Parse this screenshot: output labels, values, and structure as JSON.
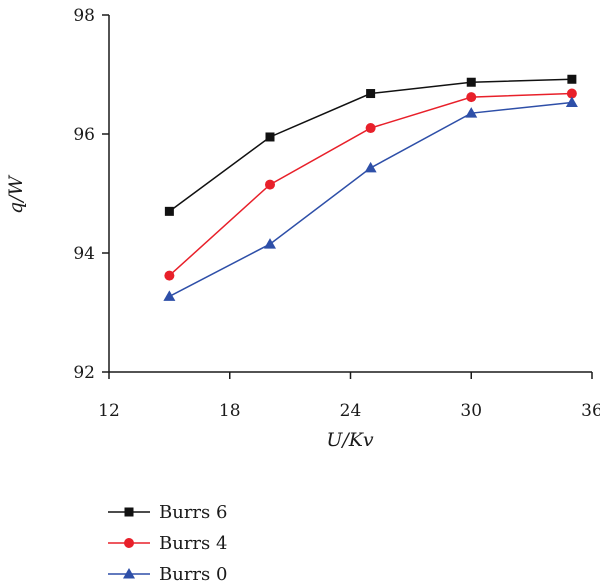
{
  "chart_data": {
    "type": "line",
    "xlabel": "U/Kv",
    "ylabel": "q/W",
    "xlim": [
      12,
      36
    ],
    "ylim": [
      92,
      98
    ],
    "xticks": [
      12,
      18,
      24,
      30,
      36
    ],
    "yticks": [
      92,
      94,
      96,
      98
    ],
    "grid": false,
    "legend_position": "bottom-left, below plot",
    "series": [
      {
        "name": "Burrs 6",
        "color": "#111111",
        "marker": "square",
        "points": [
          [
            15,
            94.7
          ],
          [
            20,
            95.95
          ],
          [
            25,
            96.68
          ],
          [
            30,
            96.87
          ],
          [
            35,
            96.92
          ]
        ]
      },
      {
        "name": "Burrs 4",
        "color": "#e8202a",
        "marker": "circle",
        "points": [
          [
            15,
            93.62
          ],
          [
            20,
            95.15
          ],
          [
            25,
            96.1
          ],
          [
            30,
            96.62
          ],
          [
            35,
            96.68
          ]
        ]
      },
      {
        "name": "Burrs 0",
        "color": "#2e4fa8",
        "marker": "triangle",
        "points": [
          [
            15,
            93.27
          ],
          [
            20,
            94.15
          ],
          [
            25,
            95.43
          ],
          [
            30,
            96.35
          ],
          [
            35,
            96.53
          ]
        ]
      }
    ]
  }
}
